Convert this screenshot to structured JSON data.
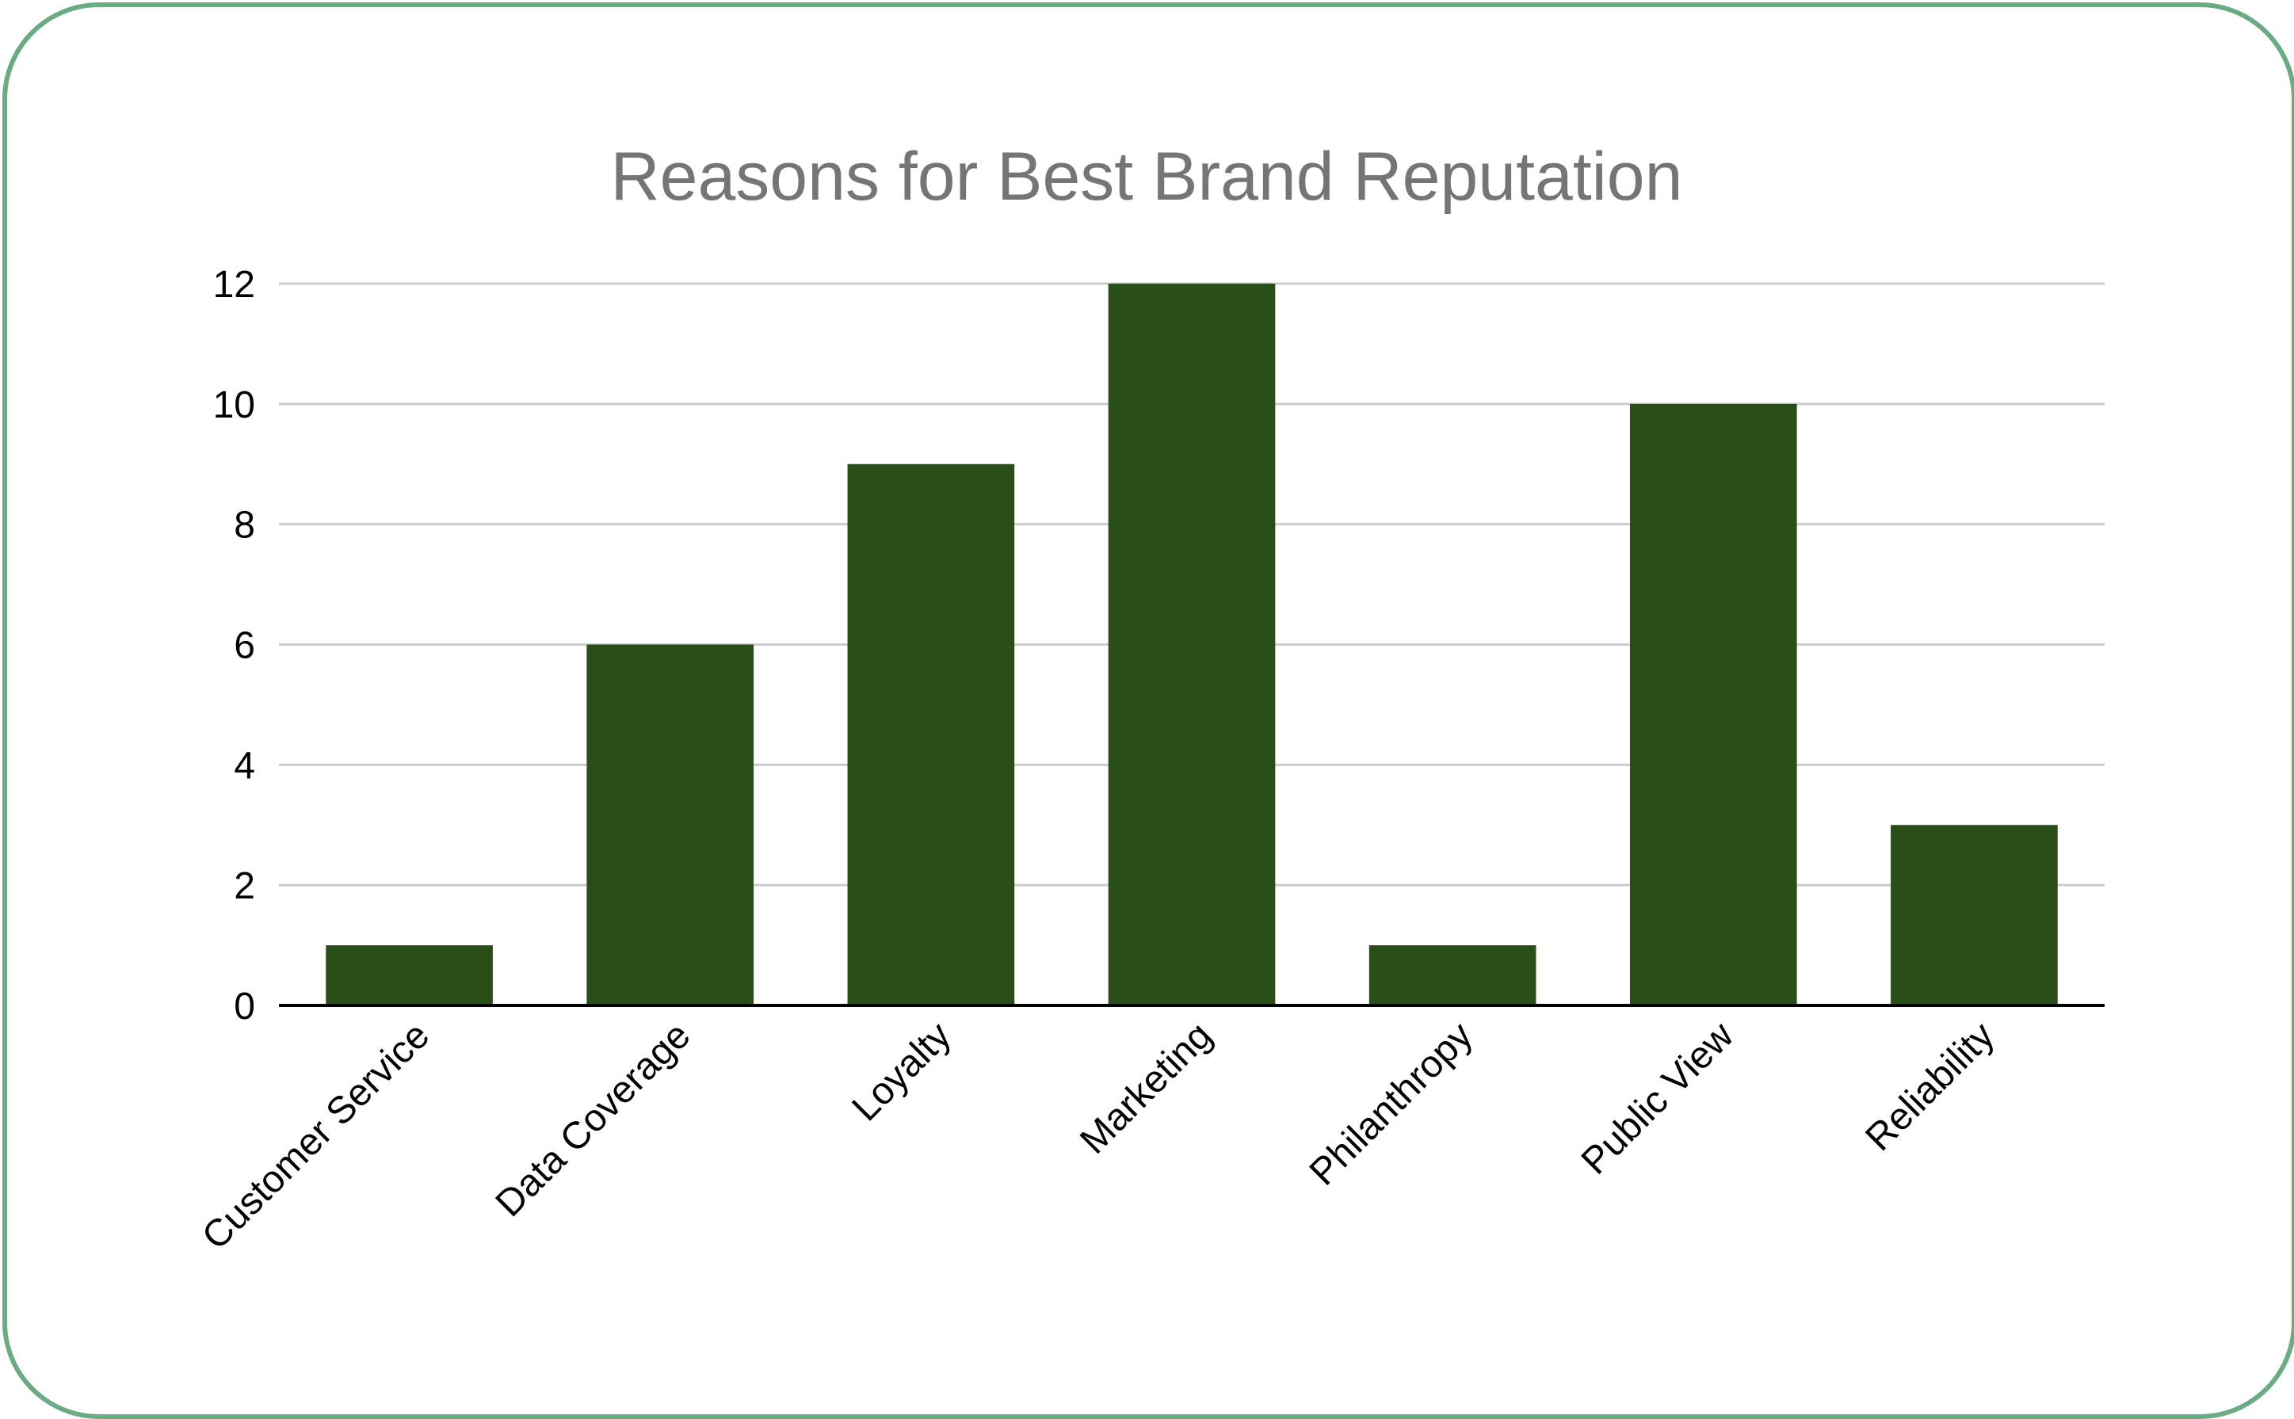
{
  "colors": {
    "card_border": "#6aab84",
    "bar": "#2a4e17",
    "gridline": "#cccccc",
    "baseline": "#000000",
    "title": "#757575"
  },
  "chart_data": {
    "type": "bar",
    "title": "Reasons for Best Brand Reputation",
    "xlabel": "",
    "ylabel": "",
    "categories": [
      "Customer Service",
      "Data Coverage",
      "Loyalty",
      "Marketing",
      "Philanthropy",
      "Public View",
      "Reliability"
    ],
    "values": [
      1,
      6,
      9,
      12,
      1,
      10,
      3
    ],
    "ylim": [
      0,
      12
    ],
    "yticks": [
      "0",
      "2",
      "4",
      "6",
      "8",
      "10",
      "12"
    ],
    "grid": true,
    "legend": "none"
  }
}
